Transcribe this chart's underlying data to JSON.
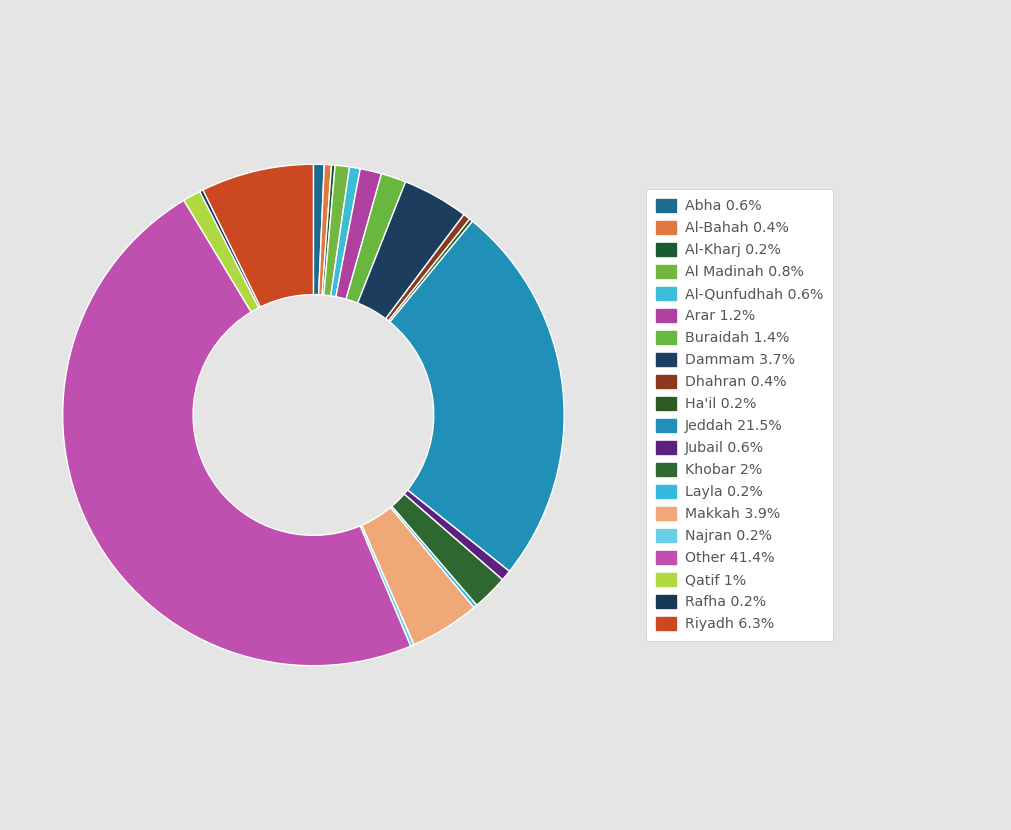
{
  "labels": [
    "Abha 0.6%",
    "Al-Bahah 0.4%",
    "Al-Kharj 0.2%",
    "Al Madinah 0.8%",
    "Al-Qunfudhah 0.6%",
    "Arar 1.2%",
    "Buraidah 1.4%",
    "Dammam 3.7%",
    "Dhahran 0.4%",
    "Ha'il 0.2%",
    "Jeddah 21.5%",
    "Jubail 0.6%",
    "Khobar 2%",
    "Layla 0.2%",
    "Makkah 3.9%",
    "Najran 0.2%",
    "Other 41.4%",
    "Qatif 1%",
    "Rafha 0.2%",
    "Riyadh 6.3%"
  ],
  "values": [
    0.6,
    0.4,
    0.2,
    0.8,
    0.6,
    1.2,
    1.4,
    3.7,
    0.4,
    0.2,
    21.5,
    0.6,
    2.0,
    0.2,
    3.9,
    0.2,
    41.4,
    1.0,
    0.2,
    6.3
  ],
  "colors": [
    "#1d6b8c",
    "#e07840",
    "#1a5c30",
    "#72b840",
    "#3bbcd8",
    "#b040a0",
    "#68b840",
    "#1c3d5e",
    "#8b3a20",
    "#2d5a20",
    "#2090b8",
    "#5c2080",
    "#2e6830",
    "#38b8e0",
    "#f0a878",
    "#68d0e8",
    "#c050b0",
    "#b0d840",
    "#183858",
    "#cc4820"
  ],
  "background_color": "#e5e5e5",
  "wedge_edge_color": "white",
  "wedge_linewidth": 1.0,
  "donut_width": 0.52,
  "start_angle": 90,
  "figsize": [
    10.11,
    8.3
  ],
  "dpi": 100
}
